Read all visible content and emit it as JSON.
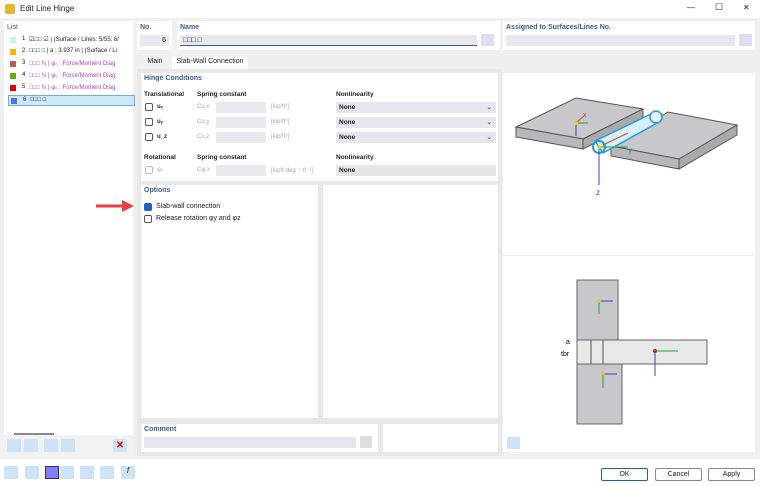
{
  "window": {
    "title": "Edit Line Hinge",
    "controls": [
      "—",
      "☐",
      "✕"
    ]
  },
  "list": {
    "header": "List",
    "items": [
      {
        "no": "1",
        "text": "☑□□ ☑ | (Surface / Lines: 5/55; 6/",
        "color": "#c8f4f8",
        "purple": false
      },
      {
        "no": "2",
        "text": "□□□ □ | a : 3.937 in | (Surface / Li",
        "color": "#f5b800",
        "purple": false
      },
      {
        "no": "3",
        "text": "□□□ ℕ | φ₀ : Force/Moment Diag",
        "color": "#b06060",
        "purple": true
      },
      {
        "no": "4",
        "text": "□□□ ℕ | φ₀ : Force/Moment Diag",
        "color": "#6aaa10",
        "purple": true
      },
      {
        "no": "5",
        "text": "□□□ ℕ | φ₀ : Force/Moment Diag",
        "color": "#e00000",
        "purple": true
      },
      {
        "no": "6",
        "text": "□□□ □",
        "color": "#5570e0",
        "purple": false,
        "selected": true
      }
    ]
  },
  "no": {
    "label": "No.",
    "value": "6"
  },
  "name": {
    "label": "Name",
    "value": "□□□ □"
  },
  "assigned": {
    "label": "Assigned to Surfaces/Lines No.",
    "value": ""
  },
  "tabs": [
    {
      "label": "Main"
    },
    {
      "label": "Slab-Wall Connection",
      "active": true
    }
  ],
  "hinge": {
    "title": "Hinge Conditions",
    "translational": "Translational",
    "spring": "Spring constant",
    "nonlinearity": "Nonlinearity",
    "rows": [
      {
        "name": "uₓ",
        "c": "Cu,x",
        "unit": "[kip/ft²]",
        "nl": "None"
      },
      {
        "name": "uᵧ",
        "c": "Cu,y",
        "unit": "[kip/ft²]",
        "nl": "None"
      },
      {
        "name": "u_z",
        "c": "Cu,z",
        "unit": "[kip/ft²]",
        "nl": "None"
      }
    ],
    "rotational": "Rotational",
    "rot": {
      "name": "φₓ",
      "c": "Cφ,x",
      "unit": "[kipft-deg⁻¹·ft⁻¹]",
      "nl": "None"
    }
  },
  "options": {
    "title": "Options",
    "slab_wall": {
      "label": "Slab-wall connection",
      "checked": true
    },
    "release": {
      "label": "Release rotation φy and φz",
      "checked": false
    }
  },
  "comment": {
    "label": "Comment",
    "value": ""
  },
  "diagram": {
    "a": "a",
    "tbr": "tbr",
    "axes": [
      "x",
      "y",
      "z"
    ]
  },
  "buttons": {
    "ok": "OK",
    "cancel": "Cancel",
    "apply": "Apply"
  }
}
